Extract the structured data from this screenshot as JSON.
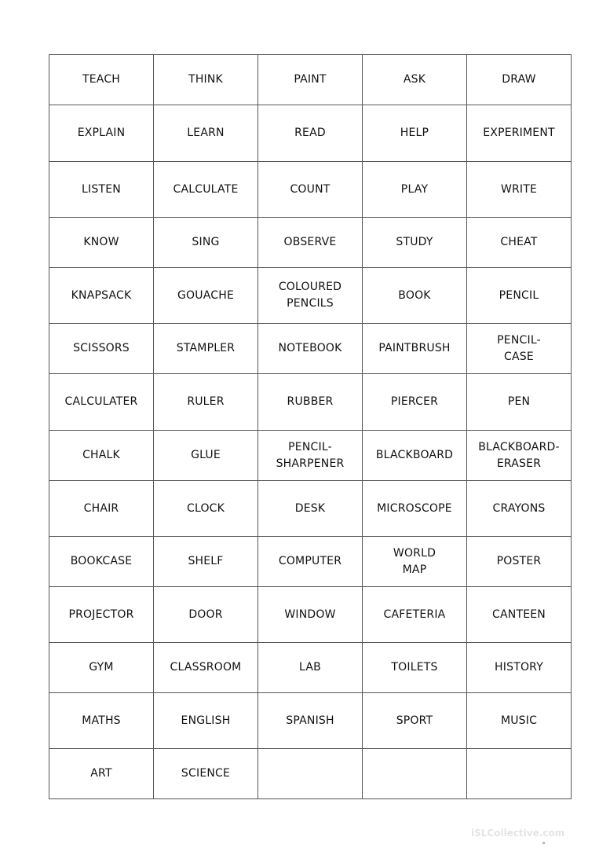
{
  "table": {
    "rows": [
      [
        "TEACH",
        "THINK",
        "PAINT",
        "ASK",
        "DRAW"
      ],
      [
        "EXPLAIN",
        "LEARN",
        "READ",
        "HELP",
        "EXPERIMENT"
      ],
      [
        "LISTEN",
        "CALCULATE",
        "COUNT",
        "PLAY",
        "WRITE"
      ],
      [
        "KNOW",
        "SING",
        "OBSERVE",
        "STUDY",
        "CHEAT"
      ],
      [
        "KNAPSACK",
        "GOUACHE",
        "COLOURED\nPENCILS",
        "BOOK",
        "PENCIL"
      ],
      [
        "SCISSORS",
        "STAMPLER",
        "NOTEBOOK",
        "PAINTBRUSH",
        "PENCIL-\nCASE"
      ],
      [
        "CALCULATER",
        "RULER",
        "RUBBER",
        "PIERCER",
        "PEN"
      ],
      [
        "CHALK",
        "GLUE",
        "PENCIL-\nSHARPENER",
        "BLACKBOARD",
        "BLACKBOARD-\nERASER"
      ],
      [
        "CHAIR",
        "CLOCK",
        "DESK",
        "MICROSCOPE",
        "CRAYONS"
      ],
      [
        "BOOKCASE",
        "SHELF",
        "COMPUTER",
        "WORLD\nMAP",
        "POSTER"
      ],
      [
        "PROJECTOR",
        "DOOR",
        "WINDOW",
        "CAFETERIA",
        "CANTEEN"
      ],
      [
        "GYM",
        "CLASSROOM",
        "LAB",
        "TOILETS",
        "HISTORY"
      ],
      [
        "MATHS",
        "ENGLISH",
        "SPANISH",
        "SPORT",
        "MUSIC"
      ],
      [
        "ART",
        "SCIENCE",
        "",
        "",
        ""
      ]
    ]
  },
  "watermark": "iSLCollective.com"
}
